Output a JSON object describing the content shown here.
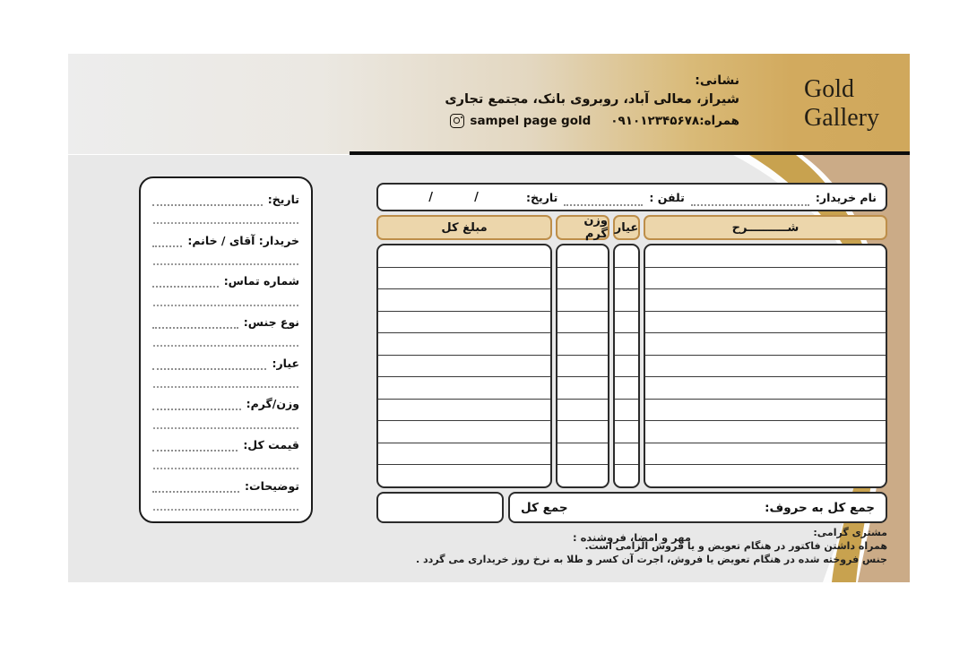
{
  "header": {
    "brand_line1": "Gold",
    "brand_line2": "Gallery",
    "address_label": "نشانی:",
    "address": "شیراز، معالی آباد، روبروی بانک، مجتمع تجاری",
    "mobile": "همراه:۰۹۱۰۱۲۳۴۵۶۷۸",
    "instagram_handle": "sampel page gold"
  },
  "side_form": {
    "fields": [
      {
        "label": "تاریخ:"
      },
      {
        "label": "خریدار: آقای / خانم:"
      },
      {
        "label": "شماره تماس:"
      },
      {
        "label": "نوع جنس:"
      },
      {
        "label": "عیار:"
      },
      {
        "label": "وزن/گرم:"
      },
      {
        "label": "قیمت کل:"
      },
      {
        "label": "توضیحات:"
      }
    ]
  },
  "table": {
    "buyer_name_label": "نام خریدار:",
    "phone_label": "تلفن :",
    "date_label": "تاریخ:",
    "date_slash_1": "/",
    "date_slash_2": "/",
    "columns": [
      {
        "label": "شــــــــــرح"
      },
      {
        "label": "عیار"
      },
      {
        "label": "وزن گرم"
      },
      {
        "label": "مبلغ کل"
      }
    ],
    "row_count": 11,
    "total_in_words_label": "جمع کل به حروف:",
    "total_label": "جمع کل"
  },
  "footer": {
    "stamp_label": "مهر و امضا، فروشنده :",
    "notes": [
      "مشتری گرامی:",
      "همراه داشتن فاکتور در هنگام تعویض و یا فروش الزامی است.",
      "جنس فروخته شده در هنگام تعویض یا فروش، اجرت آن کسر و طلا به نرخ روز خریداری می گردد ."
    ]
  },
  "colors": {
    "gold_accent": "#d0a85c",
    "tan_band": "#cbab87",
    "gold_band": "#c8a24f",
    "header_cell_fill": "#ecd6ab",
    "header_cell_border": "#bd8e4a",
    "body_background": "#e8e8e8",
    "line_black": "#0c0c0c"
  }
}
